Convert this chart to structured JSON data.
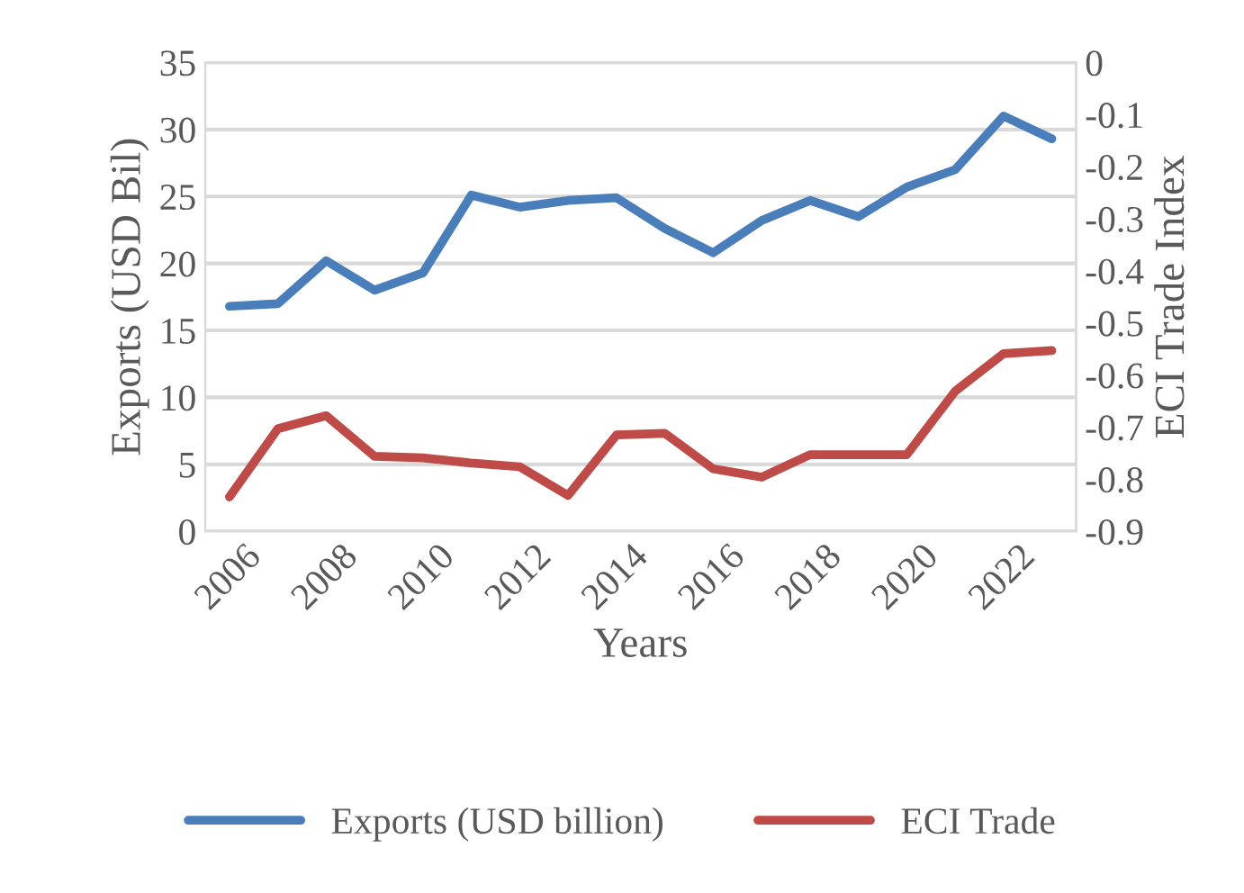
{
  "chart_data": {
    "type": "line",
    "xlabel": "Years",
    "ylabel": "Exports (USD Bil)",
    "y2label": "ECI Trade Index",
    "categories": [
      "2006",
      null,
      "2008",
      null,
      "2010",
      null,
      "2012",
      null,
      "2014",
      null,
      "2016",
      null,
      "2018",
      null,
      "2020",
      null,
      "2022",
      null
    ],
    "series": [
      {
        "name": "Exports (USD billion)",
        "color": "#4a7ebb",
        "values": [
          16.8,
          17.0,
          20.2,
          18.0,
          19.3,
          25.1,
          24.2,
          24.7,
          24.9,
          22.6,
          20.8,
          23.2,
          24.7,
          23.5,
          25.7,
          27.0,
          31.0,
          29.3
        ]
      },
      {
        "name": "ECI Trade",
        "color": "#be4b48",
        "axis": "y2",
        "values": [
          -0.834,
          -0.703,
          -0.678,
          -0.756,
          -0.759,
          -0.769,
          -0.776,
          -0.831,
          -0.715,
          -0.712,
          -0.78,
          -0.796,
          -0.753,
          -0.753,
          -0.753,
          -0.631,
          -0.559,
          -0.553
        ]
      }
    ],
    "ylim": [
      0,
      35
    ],
    "yticks": [
      0,
      5,
      10,
      15,
      20,
      25,
      30,
      35
    ],
    "y2lim": [
      -0.9,
      0
    ],
    "y2ticks": [
      -0.9,
      -0.8,
      -0.7,
      -0.6,
      -0.5,
      -0.4,
      -0.3,
      -0.2,
      -0.1,
      0
    ],
    "grid": "y",
    "legend": "bottom",
    "marker": "none",
    "line_style": "solid"
  }
}
